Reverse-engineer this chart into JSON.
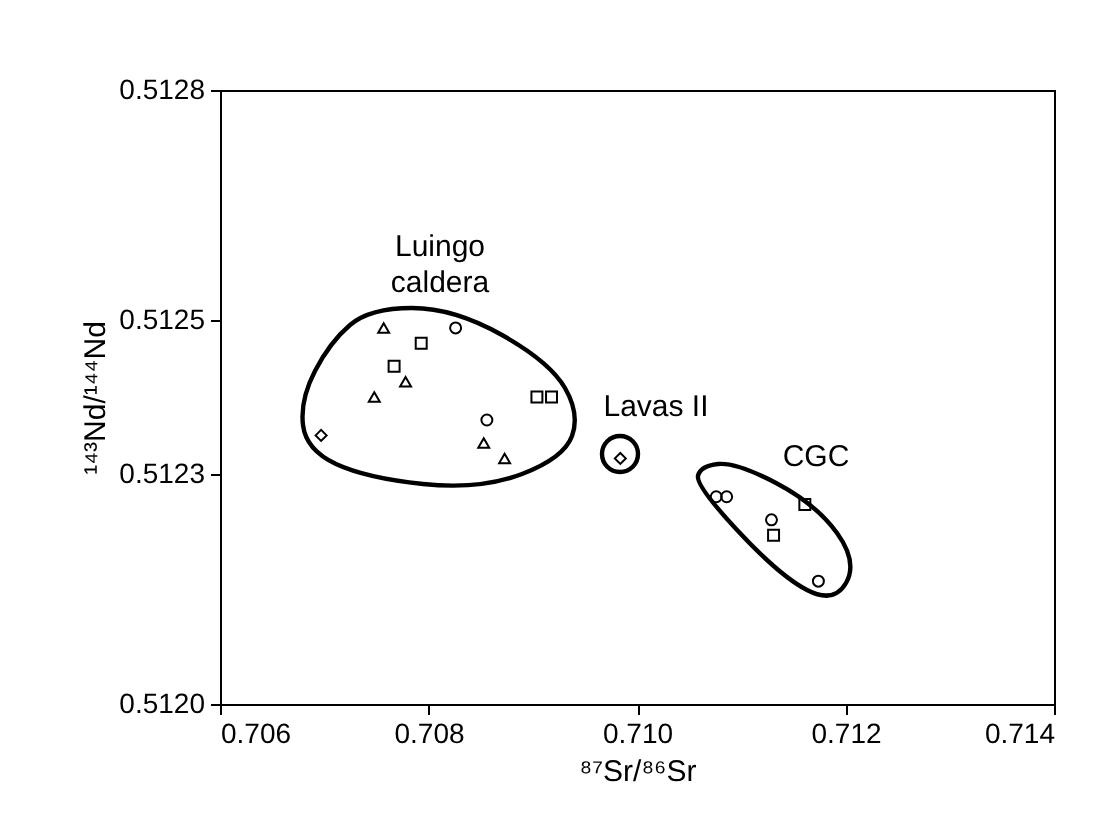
{
  "chart_data": {
    "type": "scatter",
    "xlabel": "⁸⁷Sr/⁸⁶Sr",
    "ylabel": "¹⁴³Nd/¹⁴⁴Nd",
    "xlim": [
      0.706,
      0.714
    ],
    "xticks": [
      0.706,
      0.708,
      {
        "value": 0.71,
        "label": "0.710"
      },
      0.712,
      0.714
    ],
    "ylim": [
      0.512,
      0.5128
    ],
    "yticks": [
      {
        "value": 0.512,
        "label": "0.5120"
      },
      {
        "value": 0.5123,
        "label": "0.5123"
      },
      {
        "value": 0.5125,
        "label": "0.5125"
      },
      {
        "value": 0.5128,
        "label": "0.5128"
      }
    ],
    "grid": false,
    "series": [
      {
        "color": "#000000",
        "marker": "triangle",
        "x": [
          0.70757,
          0.70778,
          0.70748,
          0.70853,
          0.70873
        ],
        "values": [
          0.51249,
          0.51242,
          0.5124,
          0.51234,
          0.51232
        ]
      },
      {
        "color": "#000000",
        "marker": "circle",
        "x": [
          0.70826,
          0.70856
        ],
        "values": [
          0.51249,
          0.51237
        ]
      },
      {
        "color": "#000000",
        "marker": "square",
        "x": [
          0.70793,
          0.70767,
          0.70904,
          0.70918
        ],
        "values": [
          0.51247,
          0.51244,
          0.5124,
          0.5124
        ]
      },
      {
        "color": "#000000",
        "marker": "diamond",
        "x": [
          0.70697,
          0.70984
        ],
        "values": [
          0.51235,
          0.51232
        ]
      },
      {
        "color": "#000000",
        "marker": "circle",
        "x": [
          0.71076,
          0.71086,
          0.71129,
          0.71174
        ],
        "values": [
          0.51227,
          0.51227,
          0.51224,
          0.51216
        ]
      },
      {
        "color": "#000000",
        "marker": "square",
        "x": [
          0.71161,
          0.71131
        ],
        "values": [
          0.51226,
          0.51222
        ]
      }
    ],
    "annotations": [
      "Luingo\ncaldera",
      "Lavas II",
      "CGC"
    ]
  }
}
